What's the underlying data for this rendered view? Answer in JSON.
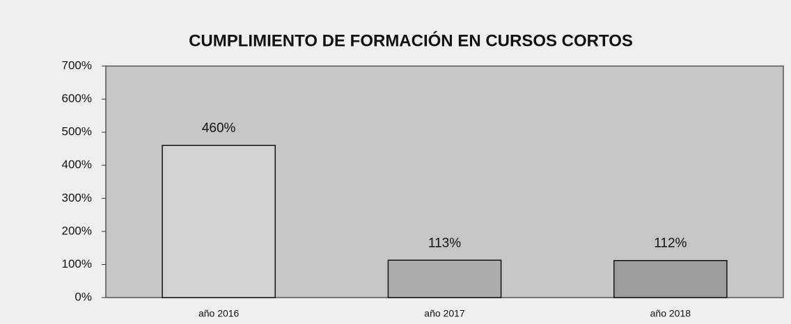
{
  "chart_data": {
    "type": "bar",
    "title": "CUMPLIMIENTO DE FORMACIÓN EN CURSOS CORTOS",
    "categories": [
      "año 2016",
      "año 2017",
      "año 2018"
    ],
    "values": [
      460,
      113,
      112
    ],
    "value_labels": [
      "460%",
      "113%",
      "112%"
    ],
    "colors": [
      "#d2d2d2",
      "#ababab",
      "#9c9c9c"
    ],
    "ylim": [
      0,
      700
    ],
    "yticks": [
      {
        "value": 0,
        "label": "0%"
      },
      {
        "value": 100,
        "label": "100%"
      },
      {
        "value": 200,
        "label": "200%"
      },
      {
        "value": 300,
        "label": "300%"
      },
      {
        "value": 400,
        "label": "400%"
      },
      {
        "value": 500,
        "label": "500%"
      },
      {
        "value": 600,
        "label": "600%"
      },
      {
        "value": 700,
        "label": "700%"
      }
    ],
    "grid": false
  }
}
